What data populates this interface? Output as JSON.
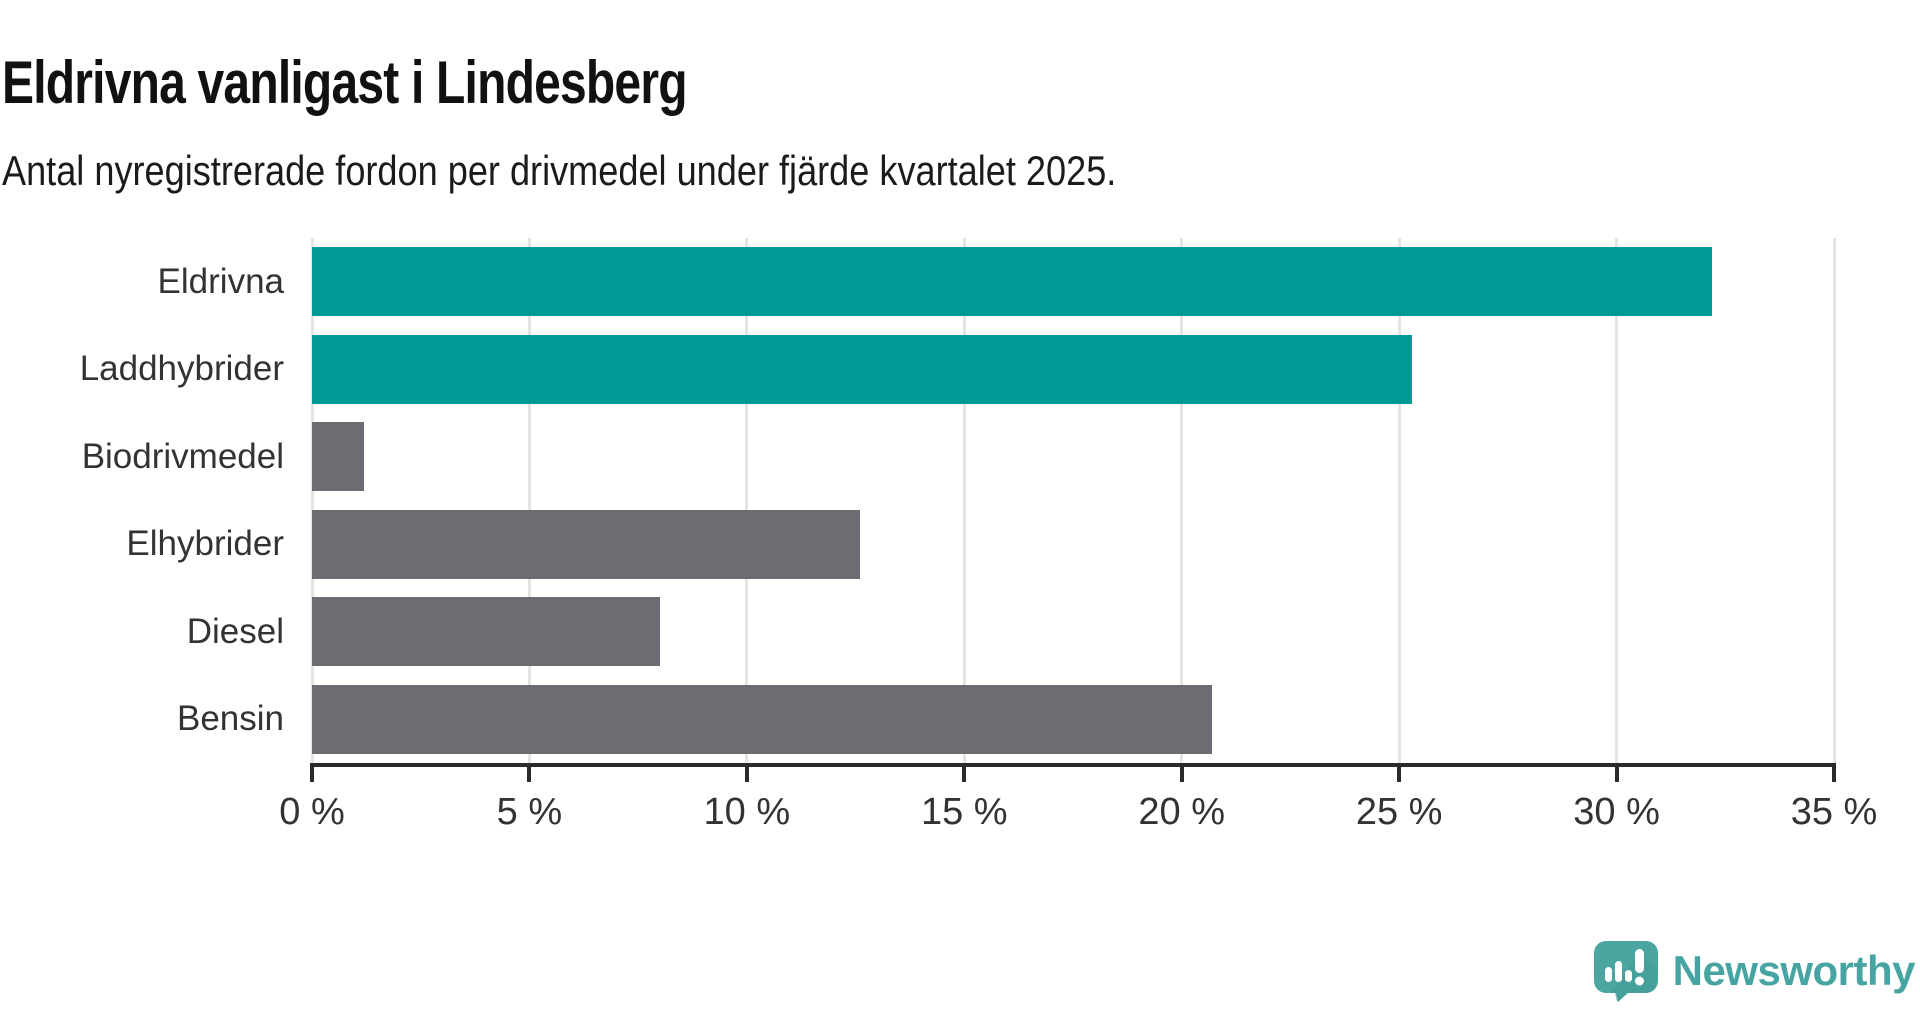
{
  "chart": {
    "title": "Eldrivna vanligast i Lindesberg",
    "subtitle": "Antal nyregistrerade fordon per drivmedel under fjärde kvartalet 2025."
  },
  "chart_data": {
    "type": "bar",
    "orientation": "horizontal",
    "title": "Eldrivna vanligast i Lindesberg",
    "subtitle": "Antal nyregistrerade fordon per drivmedel under fjärde kvartalet 2025.",
    "categories": [
      "Eldrivna",
      "Laddhybrider",
      "Biodrivmedel",
      "Elhybrider",
      "Diesel",
      "Bensin"
    ],
    "values": [
      32.2,
      25.3,
      1.2,
      12.6,
      8.0,
      20.7
    ],
    "unit": "%",
    "xlabel": "",
    "ylabel": "",
    "xlim": [
      0,
      35
    ],
    "xticks": [
      0,
      5,
      10,
      15,
      20,
      25,
      30,
      35
    ],
    "xtick_labels": [
      "0 %",
      "5 %",
      "10 %",
      "15 %",
      "20 %",
      "25 %",
      "30 %",
      "35 %"
    ],
    "grid": true,
    "legend": "none",
    "bar_colors": [
      "#009a94",
      "#009a94",
      "#6c6c72",
      "#6c6c72",
      "#6c6c72",
      "#6c6c72"
    ],
    "colors": {
      "highlight": "#009a94",
      "default": "#6c6c72",
      "gridline": "#e4e4e4",
      "axis": "#2b2b2b",
      "tick_label": "#333333",
      "category_label": "#333333"
    }
  },
  "branding": {
    "name": "Newsworthy",
    "color": "#46a5a2",
    "icon": "newsworthy-speech-bubble-chart-icon"
  }
}
